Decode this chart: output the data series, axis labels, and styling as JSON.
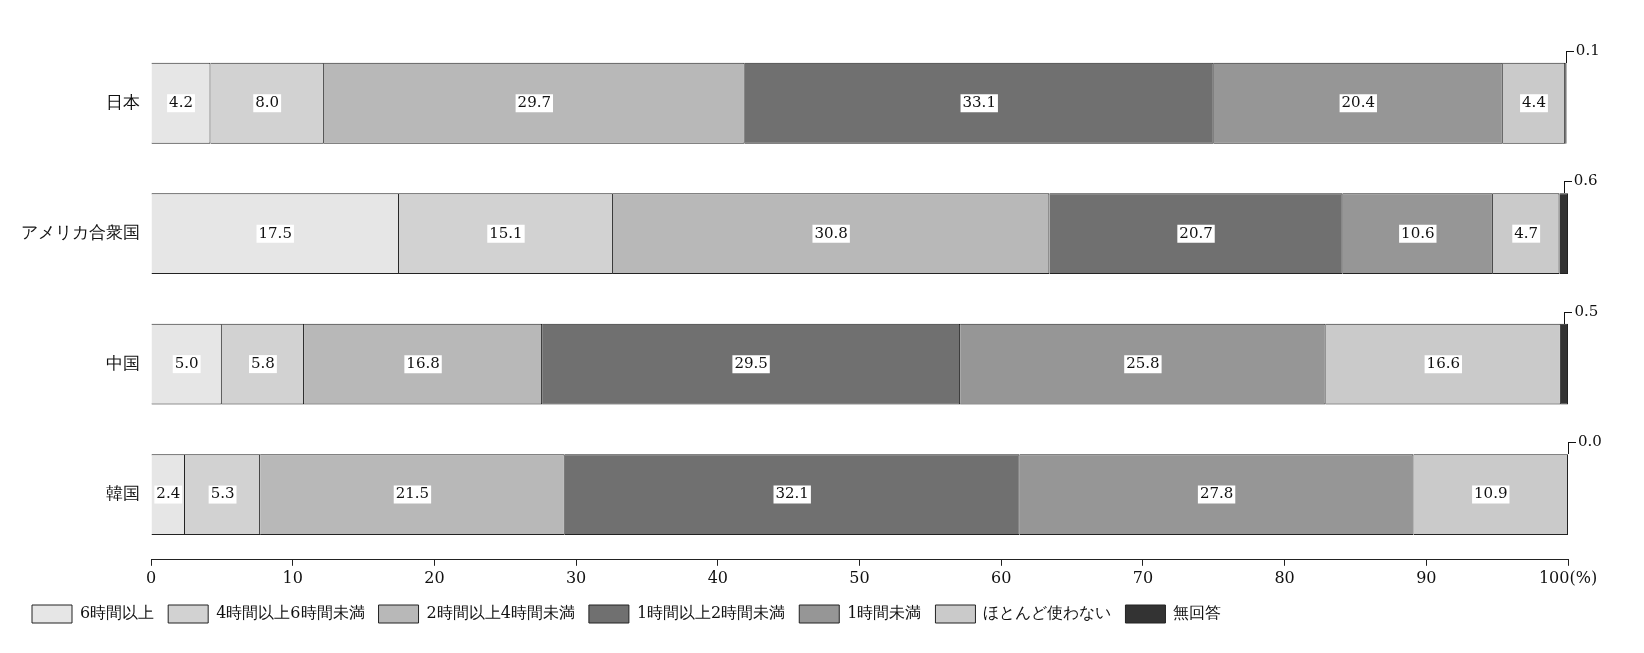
{
  "chart_data": {
    "type": "bar",
    "orientation": "horizontal",
    "stacked": true,
    "categories": [
      "日本",
      "アメリカ合衆国",
      "中国",
      "韓国"
    ],
    "series": [
      {
        "name": "6時間以上",
        "color": "#e6e6e6",
        "values": [
          4.2,
          17.5,
          5.0,
          2.4
        ],
        "value_labels": [
          "4.2",
          "17.5",
          "5.0",
          "2.4"
        ]
      },
      {
        "name": "4時間以上6時間未満",
        "color": "#d2d2d2",
        "values": [
          8.0,
          15.1,
          5.8,
          5.3
        ],
        "value_labels": [
          "8.0",
          "15.1",
          "5.8",
          "5.3"
        ]
      },
      {
        "name": "2時間以上4時間未満",
        "color": "#b8b8b8",
        "values": [
          29.7,
          30.8,
          16.8,
          21.5
        ],
        "value_labels": [
          "29.7",
          "30.8",
          "16.8",
          "21.5"
        ]
      },
      {
        "name": "1時間以上2時間未満",
        "color": "#707070",
        "values": [
          33.1,
          20.7,
          29.5,
          32.1
        ],
        "value_labels": [
          "33.1",
          "20.7",
          "29.5",
          "32.1"
        ]
      },
      {
        "name": "1時間未満",
        "color": "#969696",
        "values": [
          20.4,
          10.6,
          25.8,
          27.8
        ],
        "value_labels": [
          "20.4",
          "10.6",
          "25.8",
          "27.8"
        ]
      },
      {
        "name": "ほとんど使わない",
        "color": "#cacaca",
        "values": [
          4.4,
          4.7,
          16.6,
          10.9
        ],
        "value_labels": [
          "4.4",
          "4.7",
          "16.6",
          "10.9"
        ]
      },
      {
        "name": "無回答",
        "color": "#333333",
        "values": [
          0.1,
          0.6,
          0.5,
          0.0
        ],
        "value_labels": [
          "0.1",
          "0.6",
          "0.5",
          "0.0"
        ]
      }
    ],
    "xlim": [
      0,
      100
    ],
    "xticks": [
      0,
      10,
      20,
      30,
      40,
      50,
      60,
      70,
      80,
      90,
      {
        "value": 100,
        "label": "100(%)"
      }
    ],
    "grid": false,
    "legend": "bottom"
  }
}
